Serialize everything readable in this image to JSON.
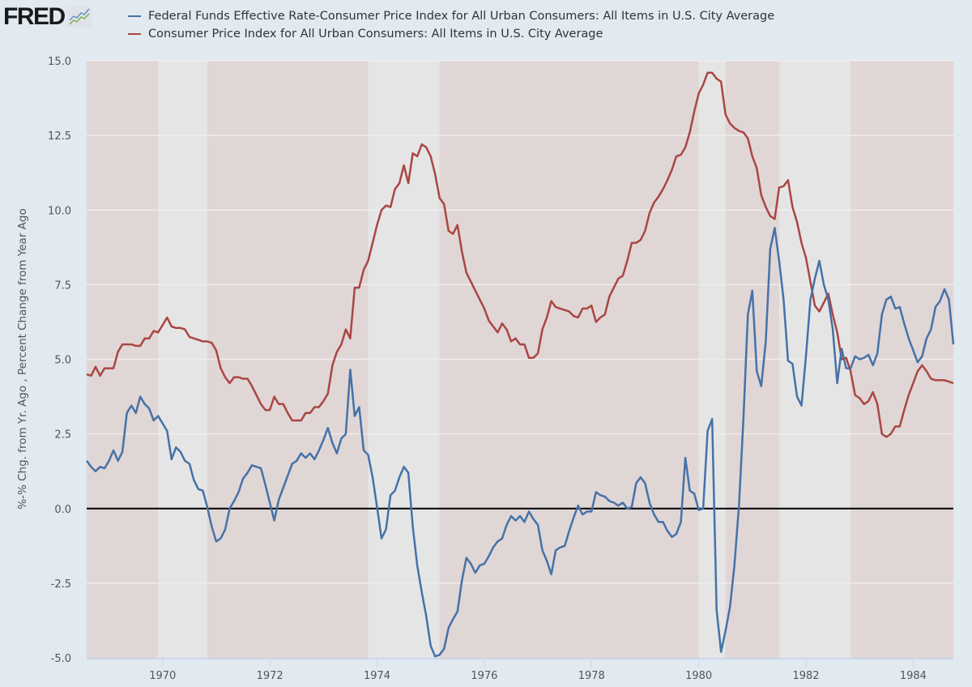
{
  "logo": {
    "text": "FRED"
  },
  "chart_data": {
    "type": "line",
    "title": "",
    "ylabel": "%-% Chg. from Yr. Ago , Percent Change from Year Ago",
    "xlabel": "",
    "ylim": [
      -5.0,
      15.0
    ],
    "y_ticks": [
      "-5.0",
      "-2.5",
      "0.0",
      "2.5",
      "5.0",
      "7.5",
      "10.0",
      "12.5",
      "15.0"
    ],
    "x_ticks": [
      "1970",
      "1972",
      "1974",
      "1976",
      "1978",
      "1980",
      "1982",
      "1984"
    ],
    "grid": true,
    "legend_position": "top",
    "shaded_periods": [
      [
        "1969-12",
        "1970-11"
      ],
      [
        "1973-11",
        "1975-03"
      ],
      [
        "1980-01",
        "1980-07"
      ],
      [
        "1981-07",
        "1982-11"
      ]
    ],
    "colors": {
      "background": "#e1e9f1",
      "plot_bg": "#e0d6d6",
      "shade": "#e5e5e5",
      "zero_line": "#000000"
    },
    "dates": [
      "1968-08",
      "1968-09",
      "1968-10",
      "1968-11",
      "1968-12",
      "1969-01",
      "1969-02",
      "1969-03",
      "1969-04",
      "1969-05",
      "1969-06",
      "1969-07",
      "1969-08",
      "1969-09",
      "1969-10",
      "1969-11",
      "1969-12",
      "1970-01",
      "1970-02",
      "1970-03",
      "1970-04",
      "1970-05",
      "1970-06",
      "1970-07",
      "1970-08",
      "1970-09",
      "1970-10",
      "1970-11",
      "1970-12",
      "1971-01",
      "1971-02",
      "1971-03",
      "1971-04",
      "1971-05",
      "1971-06",
      "1971-07",
      "1971-08",
      "1971-09",
      "1971-10",
      "1971-11",
      "1971-12",
      "1972-01",
      "1972-02",
      "1972-03",
      "1972-04",
      "1972-05",
      "1972-06",
      "1972-07",
      "1972-08",
      "1972-09",
      "1972-10",
      "1972-11",
      "1972-12",
      "1973-01",
      "1973-02",
      "1973-03",
      "1973-04",
      "1973-05",
      "1973-06",
      "1973-07",
      "1973-08",
      "1973-09",
      "1973-10",
      "1973-11",
      "1973-12",
      "1974-01",
      "1974-02",
      "1974-03",
      "1974-04",
      "1974-05",
      "1974-06",
      "1974-07",
      "1974-08",
      "1974-09",
      "1974-10",
      "1974-11",
      "1974-12",
      "1975-01",
      "1975-02",
      "1975-03",
      "1975-04",
      "1975-05",
      "1975-06",
      "1975-07",
      "1975-08",
      "1975-09",
      "1975-10",
      "1975-11",
      "1975-12",
      "1976-01",
      "1976-02",
      "1976-03",
      "1976-04",
      "1976-05",
      "1976-06",
      "1976-07",
      "1976-08",
      "1976-09",
      "1976-10",
      "1976-11",
      "1976-12",
      "1977-01",
      "1977-02",
      "1977-03",
      "1977-04",
      "1977-05",
      "1977-06",
      "1977-07",
      "1977-08",
      "1977-09",
      "1977-10",
      "1977-11",
      "1977-12",
      "1978-01",
      "1978-02",
      "1978-03",
      "1978-04",
      "1978-05",
      "1978-06",
      "1978-07",
      "1978-08",
      "1978-09",
      "1978-10",
      "1978-11",
      "1978-12",
      "1979-01",
      "1979-02",
      "1979-03",
      "1979-04",
      "1979-05",
      "1979-06",
      "1979-07",
      "1979-08",
      "1979-09",
      "1979-10",
      "1979-11",
      "1979-12",
      "1980-01",
      "1980-02",
      "1980-03",
      "1980-04",
      "1980-05",
      "1980-06",
      "1980-07",
      "1980-08",
      "1980-09",
      "1980-10",
      "1980-11",
      "1980-12",
      "1981-01",
      "1981-02",
      "1981-03",
      "1981-04",
      "1981-05",
      "1981-06",
      "1981-07",
      "1981-08",
      "1981-09",
      "1981-10",
      "1981-11",
      "1981-12",
      "1982-01",
      "1982-02",
      "1982-03",
      "1982-04",
      "1982-05",
      "1982-06",
      "1982-07",
      "1982-08",
      "1982-09",
      "1982-10",
      "1982-11",
      "1982-12",
      "1983-01",
      "1983-02",
      "1983-03",
      "1983-04",
      "1983-05",
      "1983-06",
      "1983-07",
      "1983-08",
      "1983-09",
      "1983-10",
      "1983-11",
      "1983-12",
      "1984-01",
      "1984-02",
      "1984-03",
      "1984-04",
      "1984-05",
      "1984-06",
      "1984-07",
      "1984-08",
      "1984-09",
      "1984-10"
    ],
    "series": [
      {
        "name": "Federal Funds Effective Rate-Consumer Price Index for All Urban Consumers: All Items in U.S. City Average",
        "color": "#4572a7",
        "values": [
          1.6,
          1.4,
          1.25,
          1.4,
          1.35,
          1.6,
          1.95,
          1.6,
          1.9,
          3.2,
          3.45,
          3.2,
          3.75,
          3.5,
          3.35,
          2.95,
          3.1,
          2.85,
          2.6,
          1.65,
          2.05,
          1.9,
          1.6,
          1.5,
          0.95,
          0.65,
          0.6,
          0.05,
          -0.6,
          -1.1,
          -1.0,
          -0.7,
          0.0,
          0.25,
          0.55,
          1.0,
          1.2,
          1.45,
          1.4,
          1.35,
          0.8,
          0.2,
          -0.4,
          0.3,
          0.7,
          1.1,
          1.5,
          1.6,
          1.85,
          1.7,
          1.85,
          1.65,
          1.95,
          2.3,
          2.7,
          2.2,
          1.85,
          2.35,
          2.5,
          4.65,
          3.1,
          3.4,
          1.95,
          1.8,
          1.05,
          0.05,
          -1.0,
          -0.7,
          0.45,
          0.6,
          1.05,
          1.4,
          1.2,
          -0.6,
          -1.9,
          -2.8,
          -3.6,
          -4.6,
          -4.95,
          -4.9,
          -4.7,
          -4.0,
          -3.7,
          -3.45,
          -2.4,
          -1.65,
          -1.85,
          -2.15,
          -1.9,
          -1.85,
          -1.6,
          -1.3,
          -1.1,
          -1.0,
          -0.55,
          -0.25,
          -0.4,
          -0.25,
          -0.45,
          -0.1,
          -0.35,
          -0.55,
          -1.4,
          -1.75,
          -2.2,
          -1.4,
          -1.3,
          -1.25,
          -0.75,
          -0.3,
          0.1,
          -0.2,
          -0.1,
          -0.1,
          0.55,
          0.45,
          0.4,
          0.25,
          0.2,
          0.1,
          0.2,
          0.0,
          0.05,
          0.85,
          1.05,
          0.85,
          0.2,
          -0.2,
          -0.45,
          -0.45,
          -0.75,
          -0.95,
          -0.85,
          -0.45,
          1.7,
          0.6,
          0.5,
          -0.05,
          0.0,
          2.6,
          3.0,
          -3.4,
          -4.8,
          -4.1,
          -3.3,
          -1.9,
          0.1,
          3.0,
          6.5,
          7.3,
          4.6,
          4.1,
          5.6,
          8.7,
          9.4,
          8.3,
          7.0,
          4.95,
          4.85,
          3.75,
          3.45,
          5.1,
          7.0,
          7.7,
          8.3,
          7.5,
          7.0,
          6.0,
          4.2,
          5.35,
          4.7,
          4.7,
          5.1,
          5.0,
          5.05,
          5.15,
          4.8,
          5.2,
          6.5,
          7.0,
          7.1,
          6.7,
          6.75,
          6.2,
          5.7,
          5.3,
          4.9,
          5.1,
          5.7,
          6.0,
          6.75,
          6.95,
          7.35,
          7.0,
          5.5
        ]
      },
      {
        "name": "Consumer Price Index for All Urban Consumers: All Items in U.S. City Average",
        "color": "#aa4643",
        "values": [
          4.5,
          4.45,
          4.75,
          4.45,
          4.7,
          4.7,
          4.7,
          5.25,
          5.5,
          5.5,
          5.5,
          5.45,
          5.45,
          5.7,
          5.7,
          5.95,
          5.9,
          6.15,
          6.4,
          6.1,
          6.05,
          6.05,
          6.0,
          5.75,
          5.7,
          5.65,
          5.6,
          5.6,
          5.55,
          5.3,
          4.7,
          4.4,
          4.2,
          4.4,
          4.4,
          4.35,
          4.35,
          4.1,
          3.8,
          3.5,
          3.3,
          3.3,
          3.75,
          3.5,
          3.5,
          3.2,
          2.95,
          2.95,
          2.95,
          3.2,
          3.2,
          3.4,
          3.4,
          3.6,
          3.85,
          4.8,
          5.25,
          5.5,
          6.0,
          5.7,
          7.4,
          7.4,
          8.0,
          8.3,
          8.9,
          9.5,
          10.0,
          10.15,
          10.1,
          10.7,
          10.9,
          11.5,
          10.9,
          11.9,
          11.8,
          12.2,
          12.1,
          11.8,
          11.2,
          10.4,
          10.2,
          9.3,
          9.2,
          9.5,
          8.6,
          7.9,
          7.6,
          7.3,
          7.0,
          6.7,
          6.3,
          6.1,
          5.9,
          6.2,
          6.0,
          5.6,
          5.7,
          5.5,
          5.5,
          5.05,
          5.05,
          5.2,
          6.0,
          6.4,
          6.95,
          6.75,
          6.7,
          6.65,
          6.6,
          6.45,
          6.4,
          6.7,
          6.7,
          6.8,
          6.25,
          6.4,
          6.5,
          7.1,
          7.4,
          7.7,
          7.8,
          8.3,
          8.9,
          8.9,
          9.0,
          9.3,
          9.9,
          10.25,
          10.45,
          10.7,
          11.0,
          11.35,
          11.8,
          11.85,
          12.1,
          12.6,
          13.3,
          13.9,
          14.2,
          14.6,
          14.6,
          14.4,
          14.3,
          13.2,
          12.9,
          12.75,
          12.65,
          12.6,
          12.4,
          11.8,
          11.4,
          10.5,
          10.1,
          9.8,
          9.7,
          10.75,
          10.8,
          11.0,
          10.1,
          9.6,
          8.9,
          8.4,
          7.6,
          6.8,
          6.6,
          6.9,
          7.2,
          6.5,
          5.9,
          5.0,
          5.05,
          4.6,
          3.8,
          3.7,
          3.5,
          3.6,
          3.9,
          3.5,
          2.5,
          2.4,
          2.5,
          2.75,
          2.75,
          3.3,
          3.8,
          4.2,
          4.6,
          4.8,
          4.6,
          4.35,
          4.3,
          4.3,
          4.3,
          4.25,
          4.2
        ]
      }
    ]
  }
}
